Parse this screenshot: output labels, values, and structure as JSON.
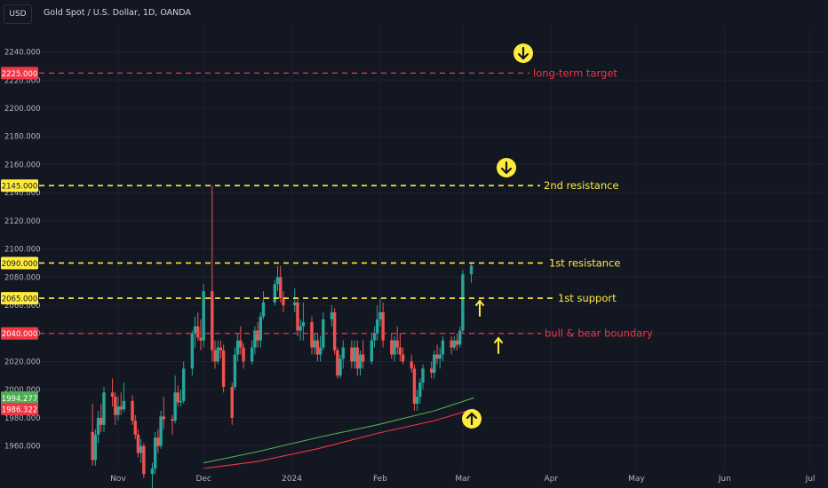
{
  "header": {
    "currency": "USD",
    "symbol": "Gold Spot / U.S. Dollar, 1D, OANDA"
  },
  "colors": {
    "background": "#131722",
    "grid": "#1e2230",
    "axis_text": "#b2b5be",
    "up": "#26a69a",
    "down": "#ef5350",
    "yellow": "#ffeb3b",
    "red_line": "#f23645",
    "ma_fast": "#4caf50",
    "ma_slow": "#f23645"
  },
  "chart_data": {
    "type": "candlestick",
    "title": "Gold Spot / U.S. Dollar, 1D, OANDA",
    "ylim": [
      1944,
      2258
    ],
    "yticks": [
      1960,
      1980,
      2000,
      2020,
      2040,
      2060,
      2080,
      2100,
      2120,
      2140,
      2160,
      2180,
      2200,
      2220,
      2240
    ],
    "xticks": [
      {
        "label": "Nov",
        "date": "2023-11-01"
      },
      {
        "label": "Dec",
        "date": "2023-12-01"
      },
      {
        "label": "2024",
        "date": "2024-01-01"
      },
      {
        "label": "Feb",
        "date": "2024-02-01"
      },
      {
        "label": "Mar",
        "date": "2024-03-01"
      },
      {
        "label": "Apr",
        "date": "2024-04-01"
      },
      {
        "label": "May",
        "date": "2024-05-01"
      },
      {
        "label": "Jun",
        "date": "2024-06-01"
      },
      {
        "label": "Jul",
        "date": "2024-07-01"
      }
    ],
    "grid": true,
    "levels": [
      {
        "label": "long-term target",
        "value": 2225,
        "tag": "2225.000",
        "color": "red",
        "arrow": "down"
      },
      {
        "label": "2nd resistance",
        "value": 2145,
        "tag": "2145.000",
        "color": "yellow",
        "arrow": "down"
      },
      {
        "label": "1st resistance",
        "value": 2090,
        "tag": "2090.000",
        "color": "yellow",
        "arrow": null
      },
      {
        "label": "1st support",
        "value": 2065,
        "tag": "2065.000",
        "color": "yellow",
        "arrow": "up-small"
      },
      {
        "label": "bull & bear boundary",
        "value": 2040,
        "tag": "2040.000",
        "color": "red",
        "arrow": "up-small"
      }
    ],
    "moving_averages": [
      {
        "color": "green",
        "last": 1994.277,
        "tag": "1994.277",
        "points": [
          [
            "2023-12-01",
            1948
          ],
          [
            "2023-12-20",
            1956
          ],
          [
            "2024-01-10",
            1966
          ],
          [
            "2024-01-31",
            1975
          ],
          [
            "2024-02-20",
            1985
          ],
          [
            "2024-03-05",
            1994.277
          ]
        ]
      },
      {
        "color": "red",
        "last": 1986.322,
        "tag": "1986.322",
        "points": [
          [
            "2023-12-01",
            1944
          ],
          [
            "2023-12-20",
            1949
          ],
          [
            "2024-01-10",
            1958
          ],
          [
            "2024-01-31",
            1969
          ],
          [
            "2024-02-20",
            1978
          ],
          [
            "2024-03-05",
            1986.322
          ]
        ]
      }
    ],
    "candles": [
      [
        "2023-10-23",
        1970,
        1990,
        1946,
        1950
      ],
      [
        "2023-10-24",
        1950,
        1972,
        1946,
        1968
      ],
      [
        "2023-10-25",
        1968,
        1985,
        1962,
        1980
      ],
      [
        "2023-10-26",
        1980,
        1990,
        1970,
        1975
      ],
      [
        "2023-10-27",
        1975,
        2002,
        1970,
        1998
      ],
      [
        "2023-10-30",
        1998,
        2008,
        1988,
        1995
      ],
      [
        "2023-10-31",
        1995,
        1998,
        1975,
        1982
      ],
      [
        "2023-11-01",
        1982,
        1995,
        1978,
        1988
      ],
      [
        "2023-11-02",
        1988,
        1998,
        1982,
        1986
      ],
      [
        "2023-11-03",
        1986,
        2005,
        1984,
        1992
      ],
      [
        "2023-11-06",
        1992,
        1996,
        1975,
        1978
      ],
      [
        "2023-11-07",
        1978,
        1982,
        1965,
        1968
      ],
      [
        "2023-11-08",
        1968,
        1972,
        1952,
        1955
      ],
      [
        "2023-11-09",
        1955,
        1965,
        1948,
        1960
      ],
      [
        "2023-11-10",
        1960,
        1962,
        1937,
        1940
      ],
      [
        "2023-11-13",
        1940,
        1948,
        1930,
        1944
      ],
      [
        "2023-11-14",
        1944,
        1970,
        1940,
        1966
      ],
      [
        "2023-11-15",
        1966,
        1972,
        1955,
        1960
      ],
      [
        "2023-11-16",
        1960,
        1985,
        1958,
        1981
      ],
      [
        "2023-11-17",
        1981,
        1995,
        1972,
        1979
      ],
      [
        "2023-11-20",
        1979,
        1982,
        1968,
        1978
      ],
      [
        "2023-11-21",
        1978,
        2010,
        1976,
        1998
      ],
      [
        "2023-11-22",
        1998,
        2003,
        1988,
        1991
      ],
      [
        "2023-11-23",
        1991,
        2000,
        1988,
        1992
      ],
      [
        "2023-11-24",
        1992,
        2020,
        1990,
        2015
      ],
      [
        "2023-11-27",
        2015,
        2042,
        2010,
        2040
      ],
      [
        "2023-11-28",
        2040,
        2052,
        2030,
        2045
      ],
      [
        "2023-11-29",
        2045,
        2055,
        2035,
        2037
      ],
      [
        "2023-11-30",
        2037,
        2050,
        2028,
        2035
      ],
      [
        "2023-12-01",
        2035,
        2075,
        2030,
        2070
      ],
      [
        "2023-12-04",
        2070,
        2145,
        2020,
        2028
      ],
      [
        "2023-12-05",
        2028,
        2035,
        2015,
        2020
      ],
      [
        "2023-12-06",
        2020,
        2035,
        2018,
        2030
      ],
      [
        "2023-12-07",
        2030,
        2035,
        2022,
        2028
      ],
      [
        "2023-12-08",
        2028,
        2032,
        1998,
        2002
      ],
      [
        "2023-12-11",
        2002,
        2005,
        1975,
        1980
      ],
      [
        "2023-12-12",
        2002,
        2030,
        2000,
        2025
      ],
      [
        "2023-12-13",
        2025,
        2040,
        2020,
        2035
      ],
      [
        "2023-12-14",
        2035,
        2045,
        2025,
        2030
      ],
      [
        "2023-12-15",
        2030,
        2033,
        2015,
        2020
      ],
      [
        "2023-12-18",
        2020,
        2035,
        2018,
        2030
      ],
      [
        "2023-12-19",
        2030,
        2045,
        2025,
        2042
      ],
      [
        "2023-12-20",
        2042,
        2048,
        2030,
        2035
      ],
      [
        "2023-12-21",
        2035,
        2055,
        2030,
        2052
      ],
      [
        "2023-12-22",
        2052,
        2070,
        2050,
        2062
      ],
      [
        "2023-12-26",
        2062,
        2078,
        2060,
        2075
      ],
      [
        "2023-12-27",
        2075,
        2088,
        2070,
        2080
      ],
      [
        "2023-12-28",
        2080,
        2088,
        2062,
        2065
      ],
      [
        "2023-12-29",
        2065,
        2070,
        2055,
        2060
      ],
      [
        "2024-01-02",
        2060,
        2072,
        2055,
        2062
      ],
      [
        "2024-01-03",
        2062,
        2065,
        2038,
        2042
      ],
      [
        "2024-01-04",
        2042,
        2050,
        2035,
        2045
      ],
      [
        "2024-01-05",
        2045,
        2062,
        2035,
        2048
      ],
      [
        "2024-01-08",
        2048,
        2052,
        2025,
        2030
      ],
      [
        "2024-01-09",
        2030,
        2040,
        2025,
        2035
      ],
      [
        "2024-01-10",
        2035,
        2040,
        2020,
        2025
      ],
      [
        "2024-01-11",
        2025,
        2038,
        2020,
        2030
      ],
      [
        "2024-01-12",
        2030,
        2055,
        2028,
        2050
      ],
      [
        "2024-01-15",
        2050,
        2060,
        2045,
        2055
      ],
      [
        "2024-01-16",
        2055,
        2058,
        2025,
        2028
      ],
      [
        "2024-01-17",
        2028,
        2030,
        2008,
        2010
      ],
      [
        "2024-01-18",
        2010,
        2025,
        2008,
        2022
      ],
      [
        "2024-01-19",
        2022,
        2035,
        2015,
        2030
      ],
      [
        "2024-01-22",
        2030,
        2035,
        2015,
        2020
      ],
      [
        "2024-01-23",
        2020,
        2035,
        2015,
        2030
      ],
      [
        "2024-01-24",
        2030,
        2035,
        2010,
        2015
      ],
      [
        "2024-01-25",
        2015,
        2028,
        2010,
        2025
      ],
      [
        "2024-01-26",
        2025,
        2035,
        2015,
        2020
      ],
      [
        "2024-01-29",
        2020,
        2040,
        2018,
        2035
      ],
      [
        "2024-01-30",
        2035,
        2045,
        2030,
        2040
      ],
      [
        "2024-01-31",
        2040,
        2060,
        2035,
        2050
      ],
      [
        "2024-02-01",
        2050,
        2065,
        2045,
        2055
      ],
      [
        "2024-02-02",
        2055,
        2062,
        2030,
        2035
      ],
      [
        "2024-02-05",
        2035,
        2040,
        2022,
        2025
      ],
      [
        "2024-02-06",
        2025,
        2038,
        2020,
        2035
      ],
      [
        "2024-02-07",
        2035,
        2045,
        2025,
        2030
      ],
      [
        "2024-02-08",
        2030,
        2040,
        2020,
        2025
      ],
      [
        "2024-02-09",
        2025,
        2030,
        2018,
        2020
      ],
      [
        "2024-02-12",
        2020,
        2025,
        2012,
        2015
      ],
      [
        "2024-02-13",
        2015,
        2018,
        1985,
        1990
      ],
      [
        "2024-02-14",
        1990,
        2000,
        1985,
        1995
      ],
      [
        "2024-02-15",
        1995,
        2008,
        1990,
        2005
      ],
      [
        "2024-02-16",
        2005,
        2018,
        2000,
        2015
      ],
      [
        "2024-02-19",
        2015,
        2020,
        2008,
        2012
      ],
      [
        "2024-02-20",
        2012,
        2028,
        2008,
        2025
      ],
      [
        "2024-02-21",
        2025,
        2032,
        2018,
        2022
      ],
      [
        "2024-02-22",
        2022,
        2030,
        2015,
        2025
      ],
      [
        "2024-02-23",
        2025,
        2038,
        2020,
        2035
      ],
      [
        "2024-02-26",
        2035,
        2038,
        2025,
        2030
      ],
      [
        "2024-02-27",
        2030,
        2038,
        2028,
        2035
      ],
      [
        "2024-02-28",
        2035,
        2040,
        2028,
        2032
      ],
      [
        "2024-02-29",
        2032,
        2045,
        2030,
        2042
      ],
      [
        "2024-03-01",
        2042,
        2085,
        2040,
        2082
      ],
      [
        "2024-03-04",
        2082,
        2090,
        2076,
        2088
      ]
    ]
  }
}
